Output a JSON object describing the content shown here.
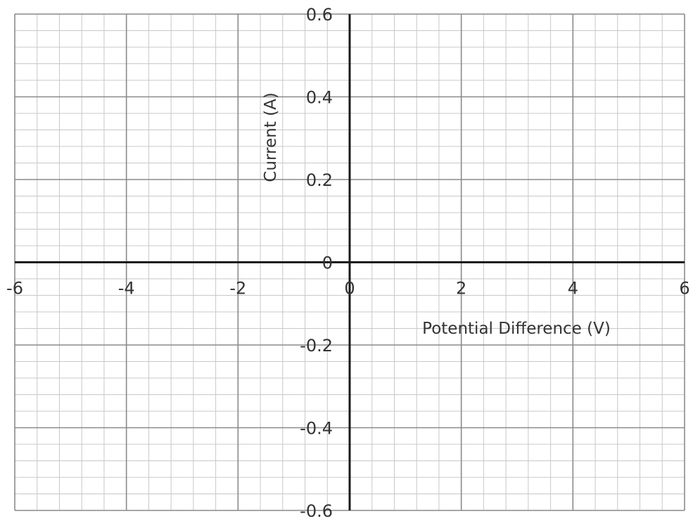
{
  "chart_data": {
    "type": "scatter",
    "title": "",
    "xlabel": "Potential Difference (V)",
    "ylabel": "Current (A)",
    "xlim": [
      -6,
      6
    ],
    "ylim": [
      -0.6,
      0.6
    ],
    "x_ticks": [
      "-6",
      "-4",
      "-2",
      "0",
      "2",
      "4",
      "6"
    ],
    "y_ticks": [
      "0.6",
      "0.4",
      "0.2",
      "0",
      "-0.2",
      "-0.4",
      "-0.6"
    ],
    "x_major_step": 2,
    "y_major_step": 0.2,
    "minor_per_major": 5,
    "grid": true,
    "series": [],
    "colors": {
      "minor_grid": "#c8c8c8",
      "major_grid": "#8a8a8a",
      "axis": "#1a1a1a",
      "text": "#333333"
    }
  }
}
